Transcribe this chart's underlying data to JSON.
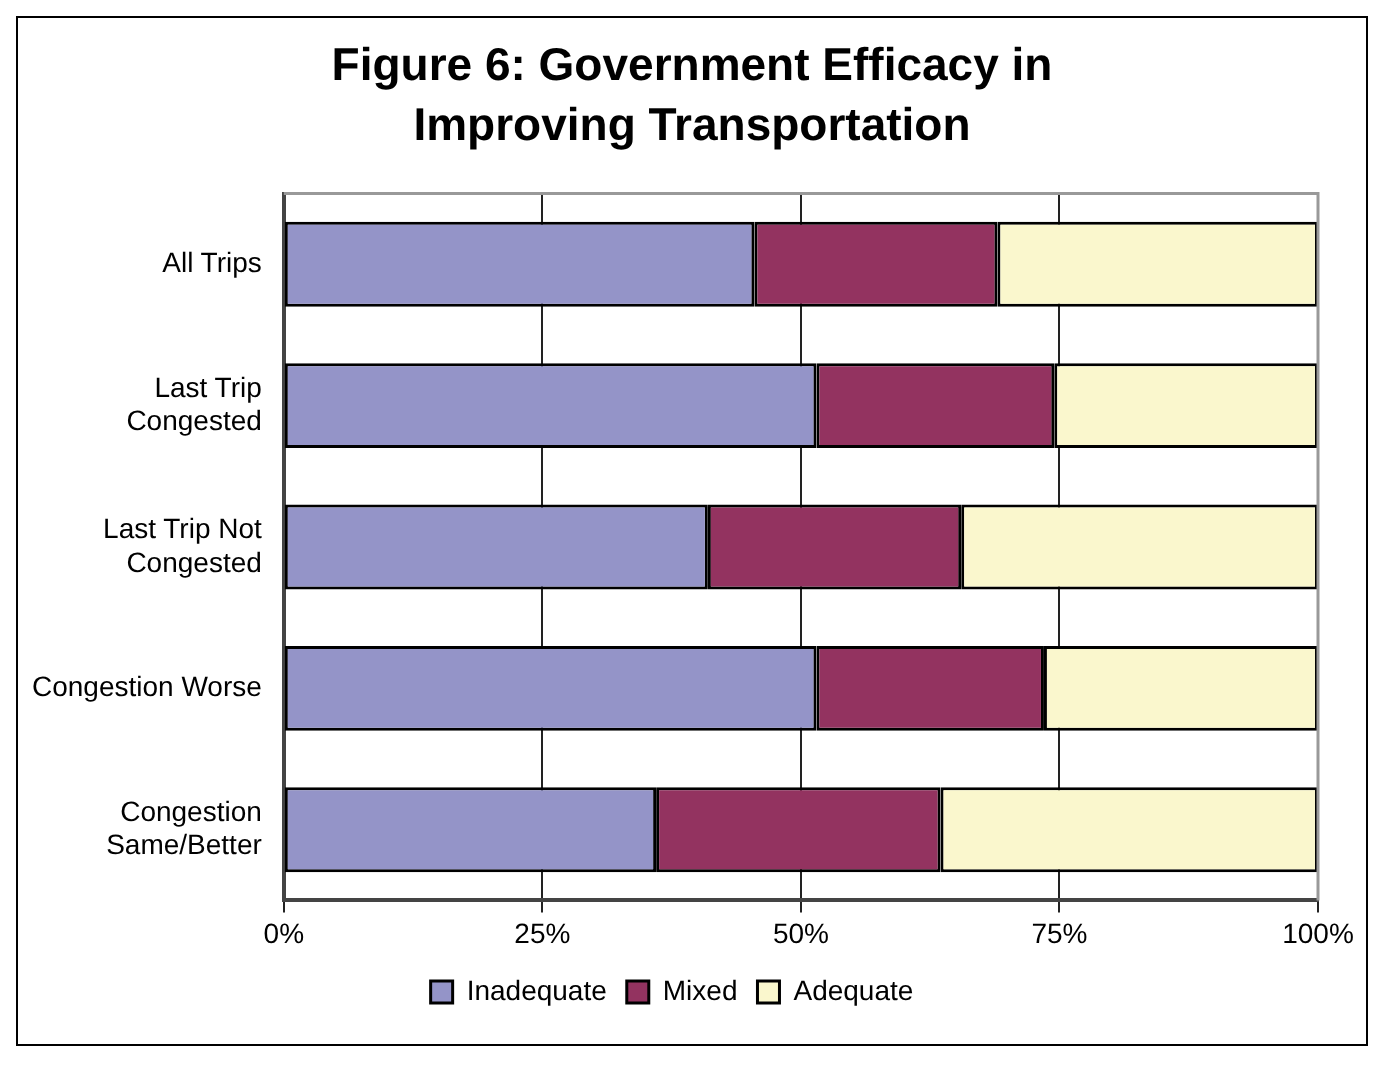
{
  "chart_data": {
    "type": "bar",
    "orientation": "horizontal",
    "stacked": true,
    "title": "Figure 6: Government Efficacy in Improving Transportation",
    "categories": [
      "All Trips",
      "Last Trip Congested",
      "Last Trip Not Congested",
      "Congestion Worse",
      "Congestion Same/Better"
    ],
    "series": [
      {
        "name": "Inadequate",
        "color": "#9494c8",
        "values": [
          45.5,
          51.5,
          41,
          51.5,
          36
        ]
      },
      {
        "name": "Mixed",
        "color": "#933360",
        "values": [
          23.5,
          23,
          24.5,
          22,
          27.5
        ]
      },
      {
        "name": "Adequate",
        "color": "#faf7cd",
        "values": [
          31,
          25.5,
          34.5,
          26.5,
          36.5
        ]
      }
    ],
    "xlim": [
      0,
      100
    ],
    "xticks": [
      {
        "value": 0,
        "label": "0%"
      },
      {
        "value": 25,
        "label": "25%"
      },
      {
        "value": 50,
        "label": "50%"
      },
      {
        "value": 75,
        "label": "75%"
      },
      {
        "value": 100,
        "label": "100%"
      }
    ],
    "grid": "x",
    "legend": "bottom"
  }
}
